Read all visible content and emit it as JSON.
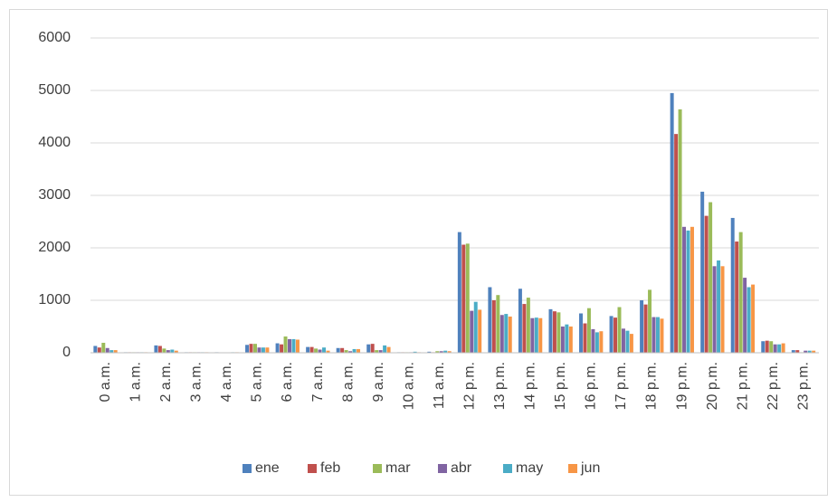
{
  "chart_data": {
    "type": "bar",
    "categories": [
      "0 a.m.",
      "1 a.m.",
      "2 a.m.",
      "3 a.m.",
      "4 a.m.",
      "5 a.m.",
      "6 a.m.",
      "7 a.m.",
      "8 a.m.",
      "9 a.m.",
      "10 a.m.",
      "11 a.m.",
      "12 p.m.",
      "13 p.m.",
      "14 p.m.",
      "15 p.m.",
      "16 p.m.",
      "17 p.m.",
      "18 p.m.",
      "19 p.m.",
      "20 p.m.",
      "21 p.m.",
      "22 p.m.",
      "23 p.m."
    ],
    "series": [
      {
        "name": "ene",
        "color": "#4f81bd",
        "values": [
          130,
          10,
          140,
          10,
          10,
          150,
          180,
          110,
          90,
          160,
          10,
          20,
          2300,
          1250,
          1220,
          830,
          750,
          700,
          1000,
          4950,
          3070,
          2570,
          220,
          50
        ]
      },
      {
        "name": "feb",
        "color": "#c0504d",
        "values": [
          100,
          10,
          130,
          10,
          5,
          170,
          160,
          110,
          90,
          170,
          10,
          10,
          2060,
          1000,
          930,
          790,
          560,
          670,
          920,
          4170,
          2610,
          2120,
          230,
          50
        ]
      },
      {
        "name": "mar",
        "color": "#9bbb59",
        "values": [
          190,
          10,
          80,
          10,
          5,
          170,
          310,
          80,
          50,
          50,
          10,
          30,
          2080,
          1100,
          1050,
          770,
          850,
          870,
          1200,
          4640,
          2870,
          2300,
          220,
          10
        ]
      },
      {
        "name": "abr",
        "color": "#8064a2",
        "values": [
          90,
          10,
          50,
          10,
          5,
          100,
          260,
          60,
          30,
          50,
          10,
          30,
          800,
          720,
          660,
          500,
          450,
          460,
          680,
          2400,
          1650,
          1430,
          160,
          40
        ]
      },
      {
        "name": "may",
        "color": "#4bacc6",
        "values": [
          50,
          10,
          60,
          10,
          10,
          100,
          260,
          100,
          70,
          140,
          20,
          40,
          970,
          740,
          670,
          540,
          390,
          420,
          680,
          2330,
          1760,
          1250,
          160,
          40
        ]
      },
      {
        "name": "jun",
        "color": "#f79646",
        "values": [
          50,
          10,
          40,
          10,
          10,
          100,
          250,
          40,
          70,
          110,
          10,
          30,
          820,
          690,
          660,
          500,
          410,
          360,
          650,
          2400,
          1650,
          1300,
          180,
          40
        ]
      }
    ],
    "ylim": [
      0,
      6000
    ],
    "yticks": [
      0,
      1000,
      2000,
      3000,
      4000,
      5000,
      6000
    ],
    "grid": true,
    "legend": "bottom"
  }
}
